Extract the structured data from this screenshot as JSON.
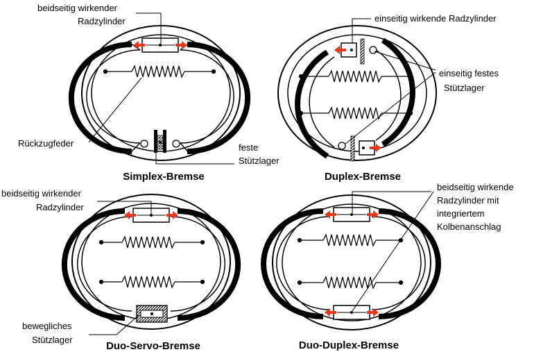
{
  "diagrams": [
    {
      "title": "Simplex-Bremse",
      "labels": [
        "beidseitig wirkender",
        "Radzylinder",
        "Rückzugfeder",
        "feste",
        "Stützlager"
      ]
    },
    {
      "title": "Duplex-Bremse",
      "labels": [
        "einseitig wirkende Radzylinder",
        "einseitig festes",
        "Stützlager"
      ]
    },
    {
      "title": "Duo-Servo-Bremse",
      "labels": [
        "beidseitig wirkender",
        "Radzylinder",
        "bewegliches",
        "Stützlager"
      ]
    },
    {
      "title": "Duo-Duplex-Bremse",
      "labels": [
        "beidseitig wirkende",
        "Radzylinder mit",
        "integriertem",
        "Kolbenanschlag"
      ]
    }
  ],
  "colors": {
    "arrow": "#e8371f",
    "line": "#000000",
    "drum": "#ffffff"
  }
}
